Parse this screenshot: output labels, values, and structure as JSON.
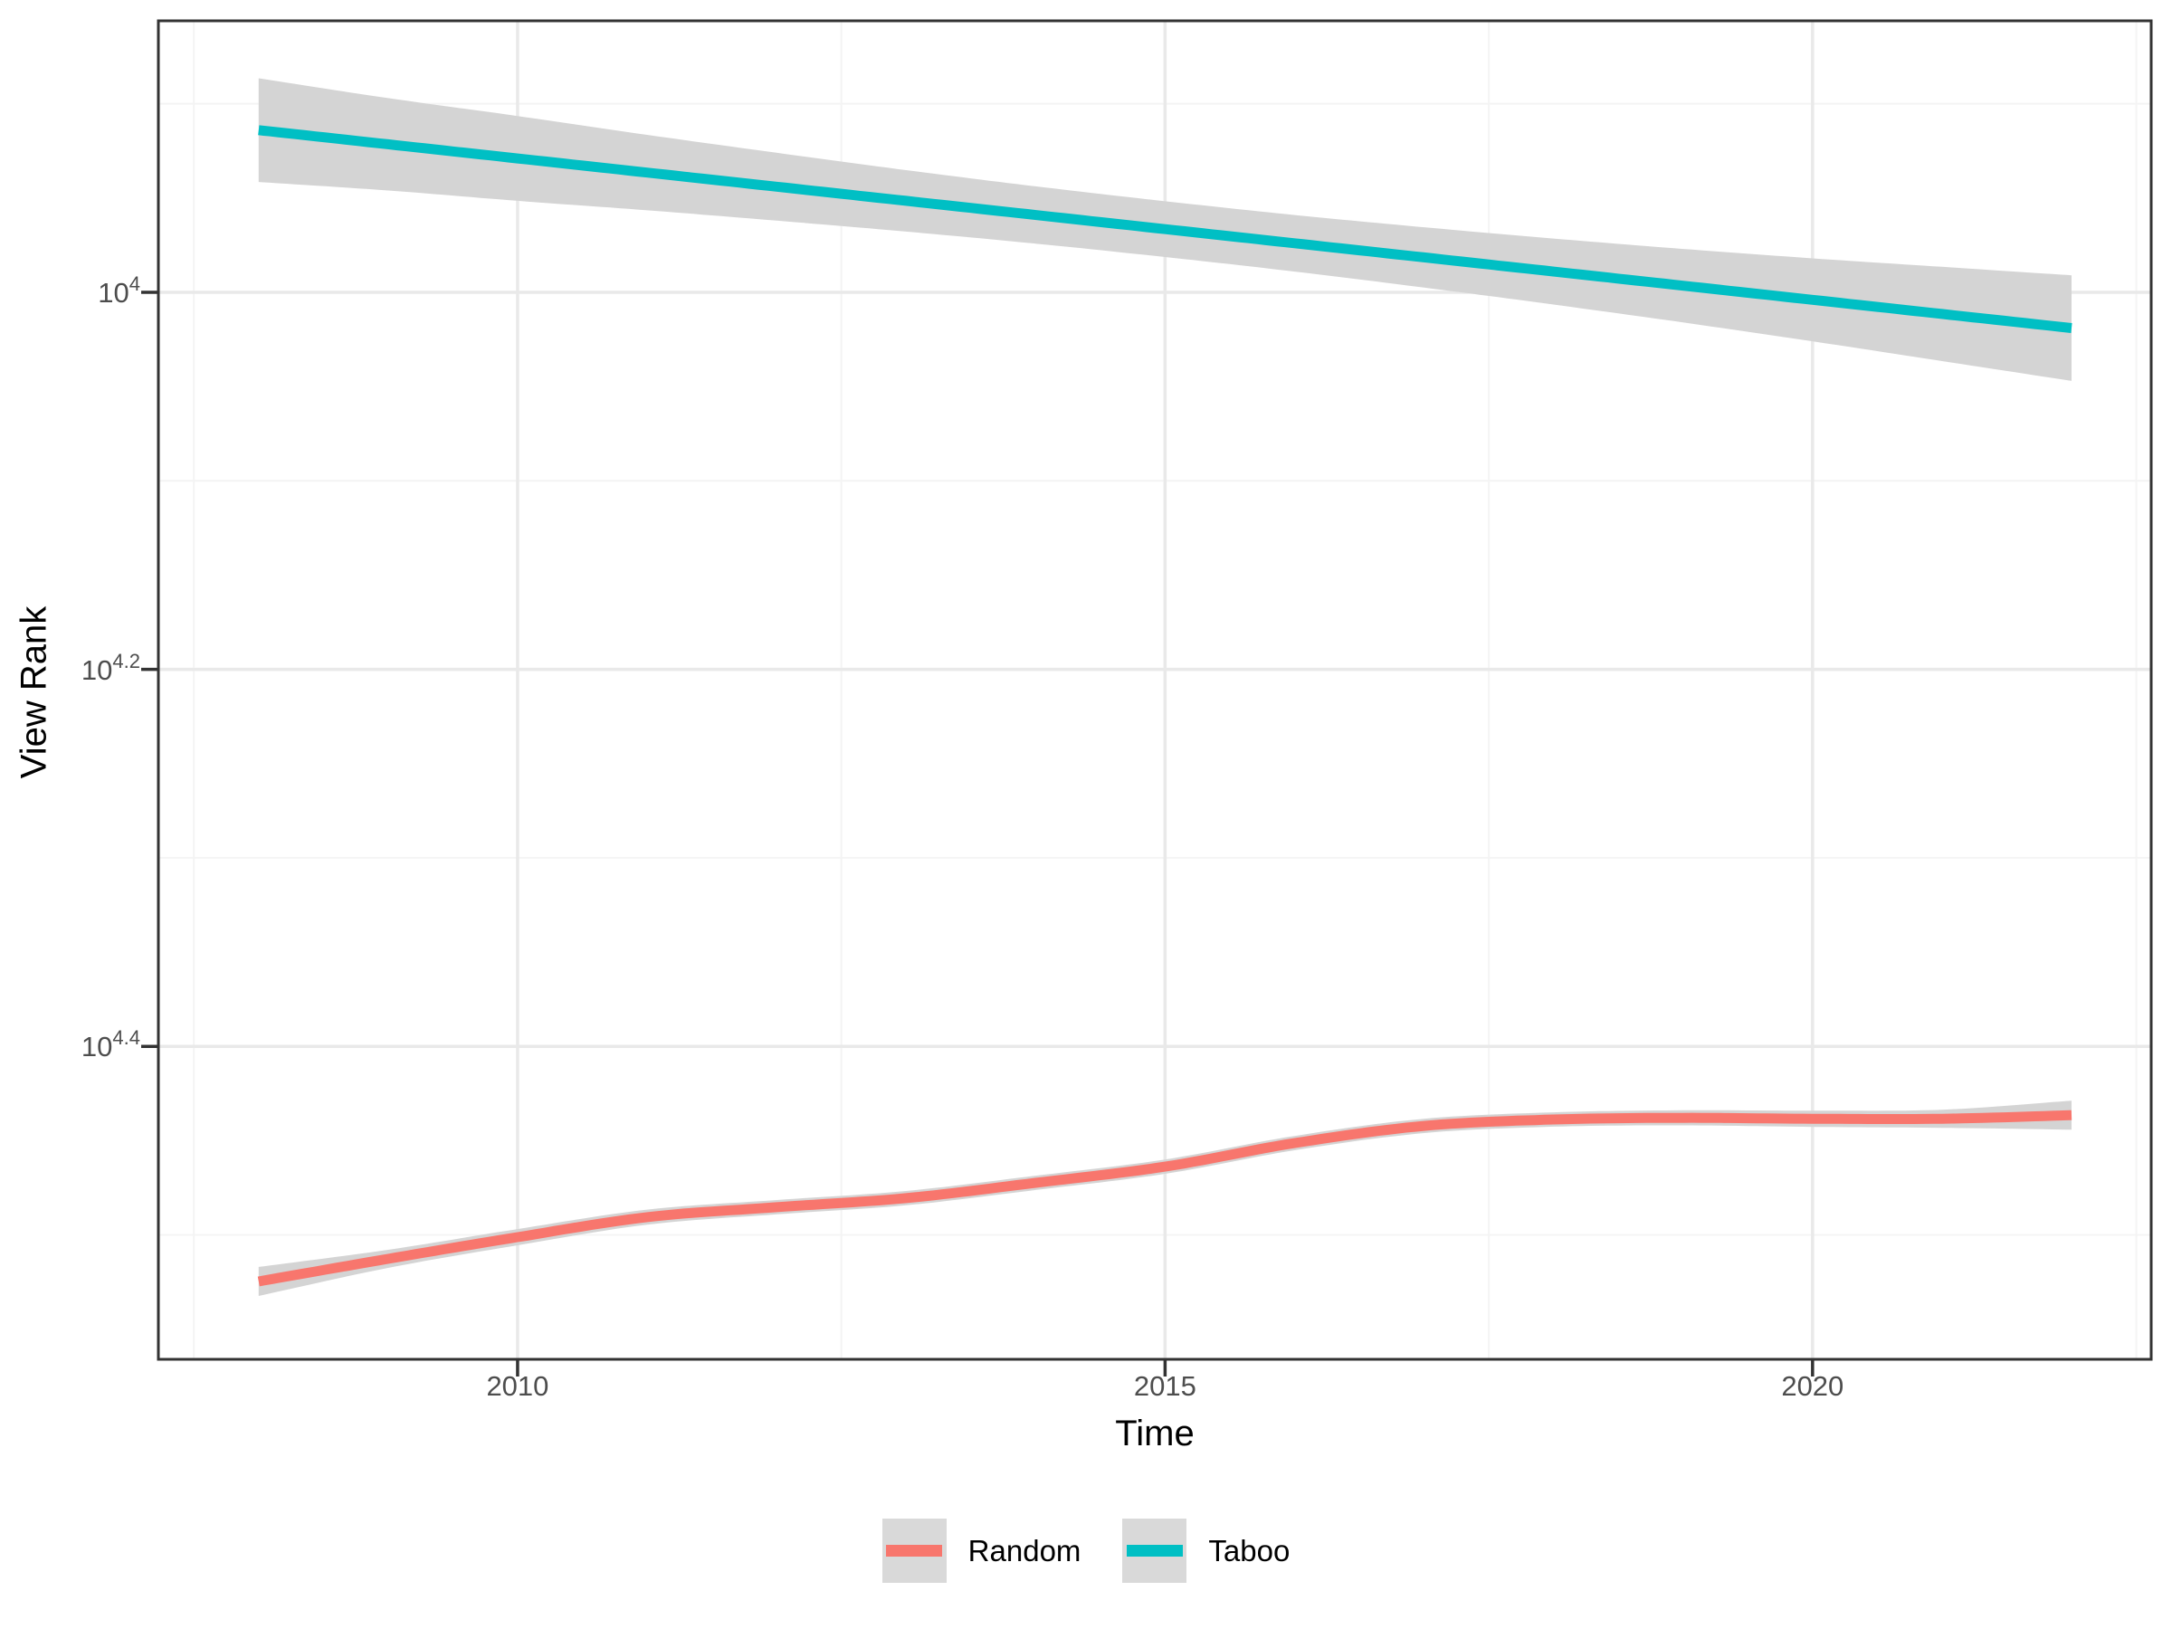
{
  "chart_data": {
    "type": "line",
    "title": "",
    "xlabel": "Time",
    "ylabel": "View Rank",
    "legend_position": "bottom",
    "grid": "on",
    "y_scale": "log10",
    "y_increases_downward": true,
    "x_range": [
      2007.226,
      2022.615
    ],
    "y_log10_range": [
      3.856,
      4.566
    ],
    "x_ticks": [
      {
        "value": 2010,
        "label": "2010"
      },
      {
        "value": 2015,
        "label": "2015"
      },
      {
        "value": 2020,
        "label": "2020"
      }
    ],
    "y_ticks": [
      {
        "log10": 4.0,
        "base": "10",
        "exp": "4"
      },
      {
        "log10": 4.2,
        "base": "10",
        "exp": "4.2"
      },
      {
        "log10": 4.4,
        "base": "10",
        "exp": "4.4"
      }
    ],
    "x_minor_gridlines": [
      2007.5,
      2012.5,
      2017.5,
      2022.5
    ],
    "y_minor_gridlines": [
      3.9,
      4.1,
      4.3,
      4.5
    ],
    "x": [
      2008,
      2009,
      2010,
      2011,
      2012,
      2013,
      2014,
      2015,
      2016,
      2017,
      2018,
      2019,
      2020,
      2021,
      2022
    ],
    "series": [
      {
        "name": "Random",
        "color": "#F8766D",
        "ribbon_color": "#d4d4d4",
        "log10_rank": [
          4.5247,
          4.5127,
          4.5012,
          4.4906,
          4.4853,
          4.4805,
          4.4724,
          4.4638,
          4.4513,
          4.4422,
          4.4388,
          4.4379,
          4.4384,
          4.4384,
          4.4365
        ],
        "rank": [
          33500,
          32600,
          31700,
          31000,
          30550,
          30200,
          29650,
          29100,
          28250,
          27650,
          27500,
          27400,
          27400,
          27400,
          27350
        ],
        "ci_low_log10": [
          4.517,
          4.5079,
          4.4969,
          4.4866,
          4.4815,
          4.4767,
          4.4686,
          4.46,
          4.4475,
          4.4384,
          4.435,
          4.4339,
          4.4341,
          4.4336,
          4.4288
        ],
        "ci_high_log10": [
          4.5324,
          4.5175,
          4.5055,
          4.4946,
          4.4891,
          4.4843,
          4.4762,
          4.4676,
          4.4551,
          4.446,
          4.4426,
          4.4419,
          4.4427,
          4.4432,
          4.4442
        ]
      },
      {
        "name": "Taboo",
        "color": "#00BFC4",
        "ribbon_color": "#d4d4d4",
        "log10_rank": [
          3.914,
          3.9215,
          3.929,
          3.9365,
          3.944,
          3.9515,
          3.959,
          3.9665,
          3.974,
          3.9815,
          3.989,
          3.9965,
          4.004,
          4.0115,
          4.019
        ],
        "rank": [
          8200,
          8350,
          8500,
          8650,
          8800,
          8950,
          9100,
          9270,
          9420,
          9590,
          9750,
          9930,
          10090,
          10280,
          10450
        ],
        "ci_low_log10": [
          3.8865,
          3.897,
          3.9065,
          3.9165,
          3.926,
          3.9352,
          3.9438,
          3.9517,
          3.959,
          3.9655,
          3.9715,
          3.977,
          3.982,
          3.9865,
          3.991
        ],
        "ci_high_log10": [
          3.9415,
          3.946,
          3.9515,
          3.9565,
          3.962,
          3.9678,
          3.9742,
          3.9813,
          3.989,
          3.9975,
          4.0065,
          4.016,
          4.026,
          4.0365,
          4.047
        ]
      }
    ]
  },
  "colors": {
    "panel_border": "#333333",
    "major_grid": "#e9e9e9",
    "minor_grid": "#f4f4f4",
    "tick_mark": "#333333",
    "tick_label": "#4d4d4d",
    "legend_key_bg": "#d9d9d9"
  }
}
